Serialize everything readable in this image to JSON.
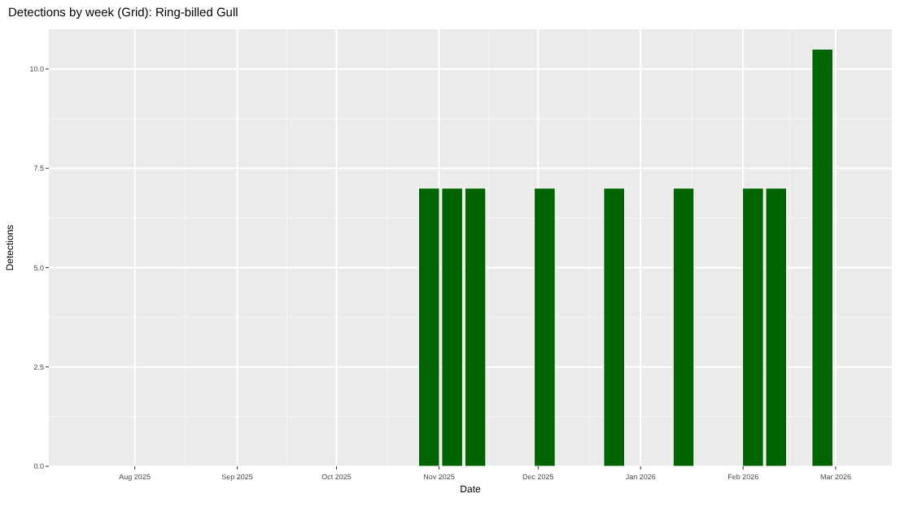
{
  "chart_data": {
    "type": "bar",
    "title": "Detections by week (Grid): Ring-billed Gull",
    "xlabel": "Date",
    "ylabel": "Detections",
    "x": [
      "2025-10-29",
      "2025-11-05",
      "2025-11-12",
      "2025-12-03",
      "2025-12-24",
      "2026-01-14",
      "2026-02-04",
      "2026-02-11",
      "2026-02-25"
    ],
    "values": [
      7,
      7,
      7,
      7,
      7,
      7,
      7,
      7,
      10.5
    ],
    "color": "#006400",
    "xlim": [
      "2025-07-06",
      "2026-03-18"
    ],
    "xticks": [
      {
        "value": "2025-08-01",
        "label": "Aug 2025"
      },
      {
        "value": "2025-09-01",
        "label": "Sep 2025"
      },
      {
        "value": "2025-10-01",
        "label": "Oct 2025"
      },
      {
        "value": "2025-11-01",
        "label": "Nov 2025"
      },
      {
        "value": "2025-12-01",
        "label": "Dec 2025"
      },
      {
        "value": "2026-01-01",
        "label": "Jan 2026"
      },
      {
        "value": "2026-02-01",
        "label": "Feb 2026"
      },
      {
        "value": "2026-03-01",
        "label": "Mar 2026"
      }
    ],
    "ylim": [
      0,
      11
    ],
    "yticks": [
      {
        "value": 0,
        "label": "0.0"
      },
      {
        "value": 2.5,
        "label": "2.5"
      },
      {
        "value": 5,
        "label": "5.0"
      },
      {
        "value": 7.5,
        "label": "7.5"
      },
      {
        "value": 10,
        "label": "10.0"
      }
    ],
    "grid": true
  }
}
